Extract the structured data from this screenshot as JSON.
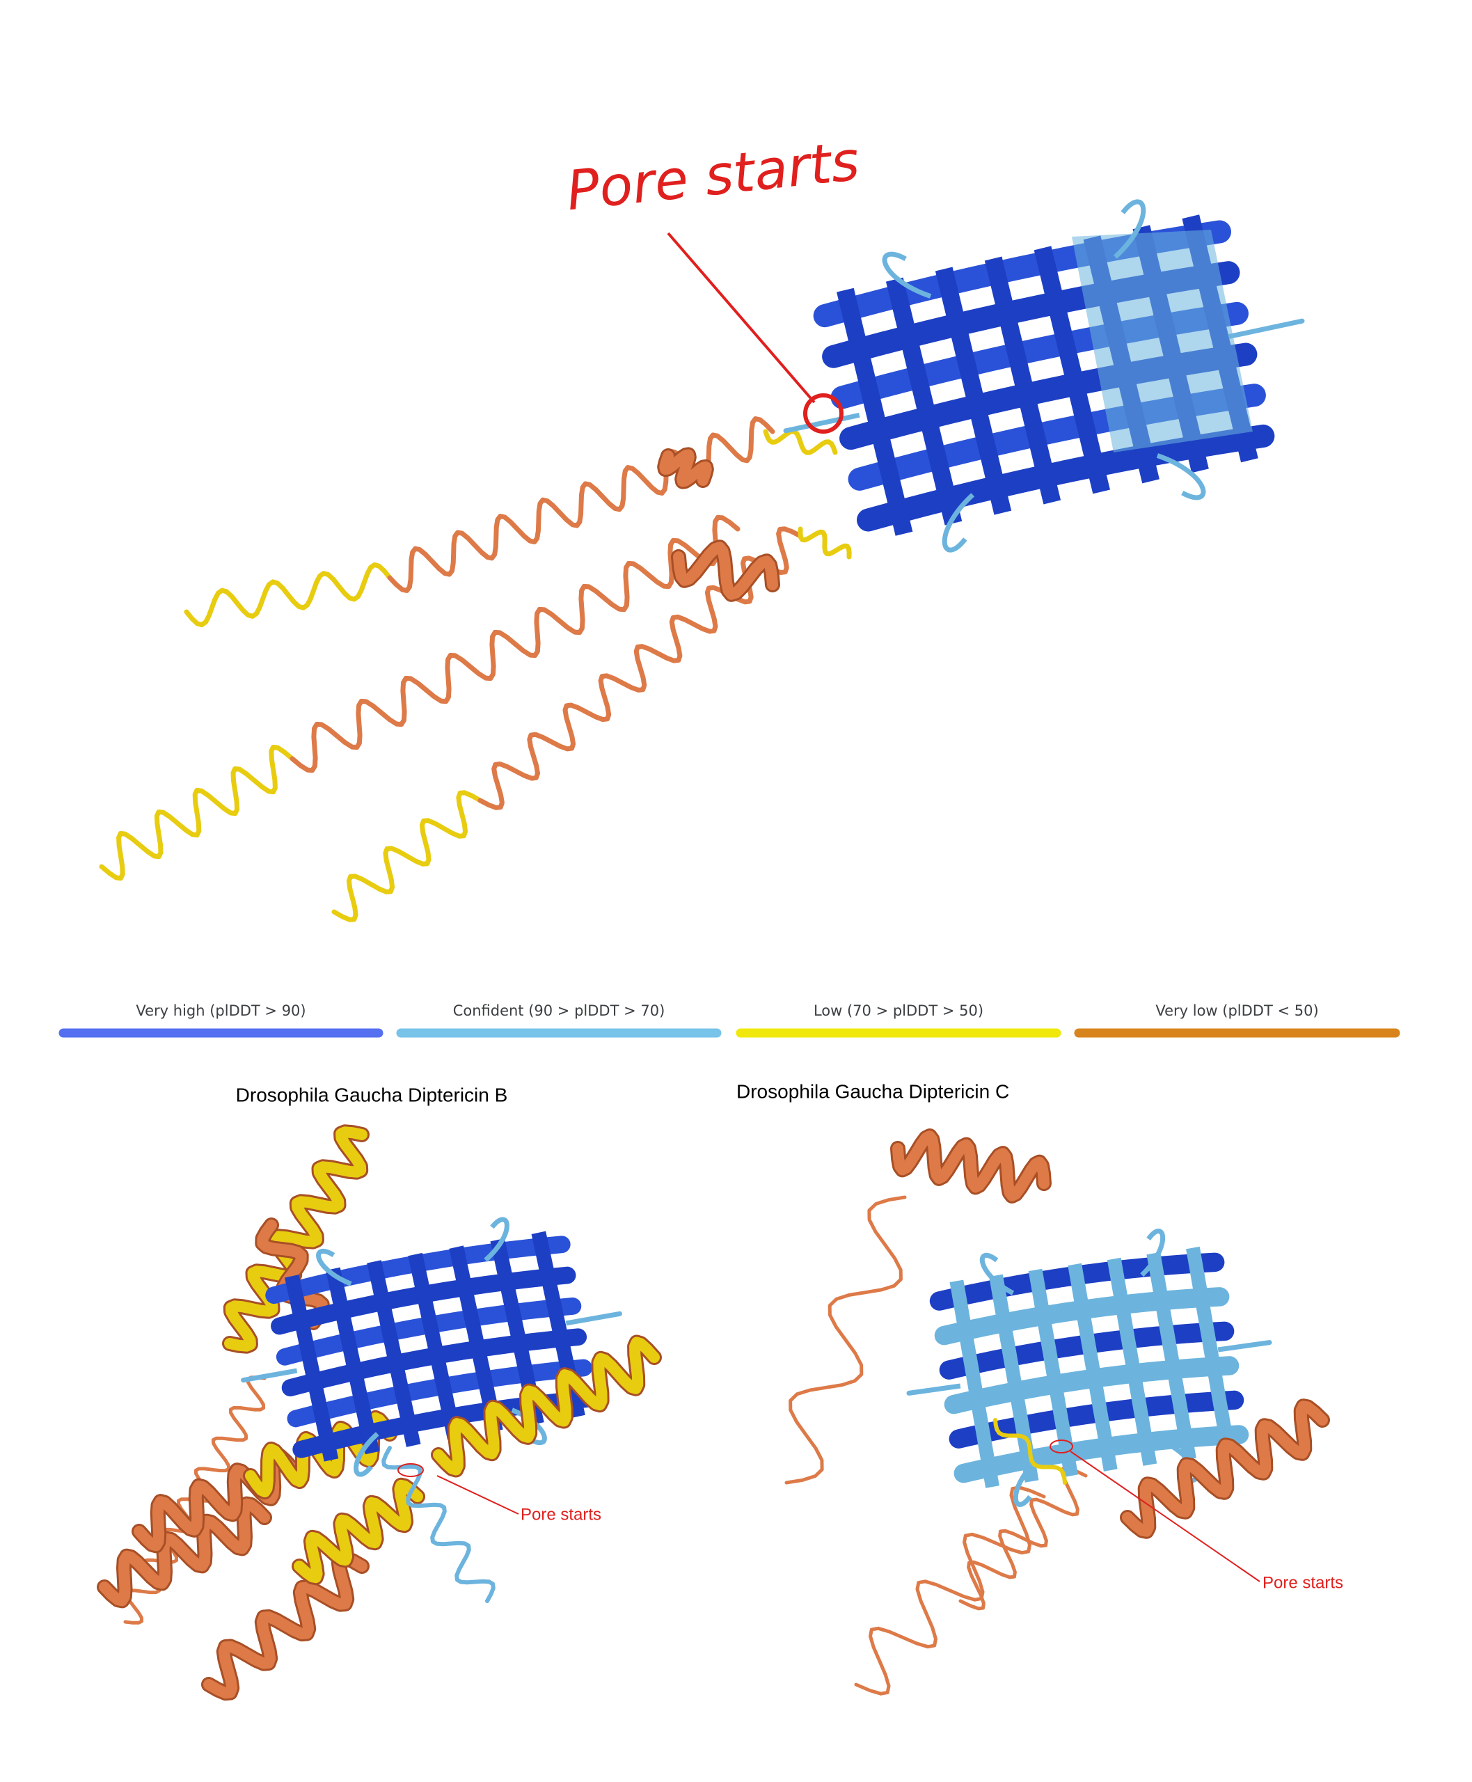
{
  "top": {
    "annotation": "Pore starts"
  },
  "legend": {
    "items": [
      {
        "label": "Very high (plDDT > 90)",
        "color": "#5470f0"
      },
      {
        "label": "Confident (90 > plDDT > 70)",
        "color": "#77c3ea"
      },
      {
        "label": "Low (70 > plDDT > 50)",
        "color": "#f0e80c"
      },
      {
        "label": "Very low (plDDT < 50)",
        "color": "#d8841c"
      }
    ]
  },
  "panels": [
    {
      "title": "Drosophila Gaucha Diptericin B",
      "annotation": "Pore starts"
    },
    {
      "title": "Drosophila Gaucha Diptericin C",
      "annotation": "Pore starts"
    }
  ]
}
